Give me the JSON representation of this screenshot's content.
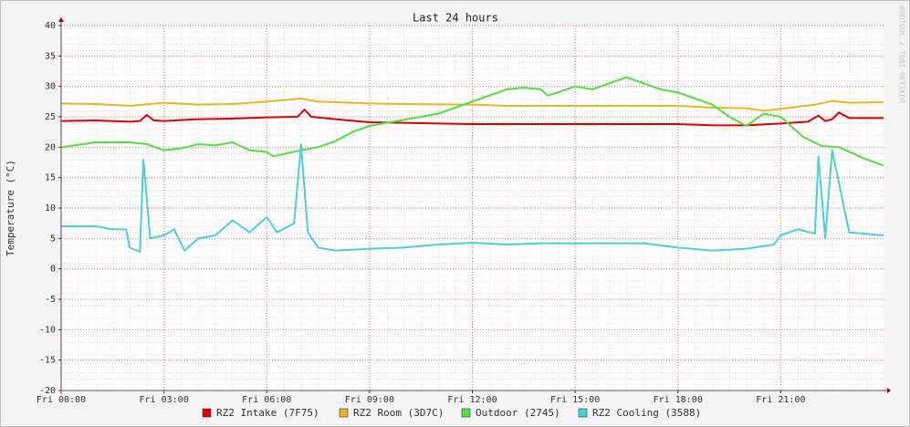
{
  "chart_data": {
    "type": "line",
    "title": "Last 24 hours",
    "y_label": "Temperature (°C)",
    "watermark": "RRDTOOL / TOBI OETIKER",
    "xlim": [
      0,
      24
    ],
    "ylim": [
      -20,
      40
    ],
    "xticks": [
      {
        "value": 0,
        "label": "Fri 00:00"
      },
      {
        "value": 3,
        "label": "Fri 03:00"
      },
      {
        "value": 6,
        "label": "Fri 06:00"
      },
      {
        "value": 9,
        "label": "Fri 09:00"
      },
      {
        "value": 12,
        "label": "Fri 12:00"
      },
      {
        "value": 15,
        "label": "Fri 15:00"
      },
      {
        "value": 18,
        "label": "Fri 18:00"
      },
      {
        "value": 21,
        "label": "Fri 21:00"
      }
    ],
    "yticks": [
      -20,
      -15,
      -10,
      -5,
      0,
      5,
      10,
      15,
      20,
      25,
      30,
      35,
      40
    ],
    "grid": true,
    "series": [
      {
        "name": "RZ2 Intake (7F75)",
        "color": "#e00000",
        "x": [
          0,
          1,
          2,
          2.3,
          2.5,
          2.7,
          3,
          4,
          5,
          6,
          6.9,
          7.1,
          7.3,
          8,
          9,
          10,
          12,
          15,
          18,
          19,
          20,
          21,
          21.8,
          22.1,
          22.3,
          22.5,
          22.7,
          23,
          24
        ],
        "values": [
          24.3,
          24.4,
          24.2,
          24.3,
          25.3,
          24.4,
          24.3,
          24.6,
          24.7,
          24.9,
          25,
          26.2,
          25,
          24.6,
          24.1,
          24,
          23.8,
          23.8,
          23.8,
          23.6,
          23.6,
          23.9,
          24.2,
          25.2,
          24.3,
          24.6,
          25.7,
          24.8,
          24.8
        ]
      },
      {
        "name": "RZ2 Room (3D7C)",
        "color": "#e8b820",
        "x": [
          0,
          1,
          2,
          3,
          4,
          5,
          6,
          7,
          7.5,
          8,
          9,
          10,
          12,
          13,
          15,
          18,
          19,
          20,
          20.5,
          21,
          22,
          22.5,
          23,
          24
        ],
        "values": [
          27.2,
          27.1,
          26.8,
          27.3,
          27,
          27.1,
          27.5,
          28,
          27.5,
          27.4,
          27.2,
          27.1,
          27,
          26.8,
          26.8,
          26.8,
          26.5,
          26.4,
          26,
          26.3,
          27,
          27.6,
          27.3,
          27.4
        ]
      },
      {
        "name": "Outdoor (2745)",
        "color": "#50e040",
        "x": [
          0,
          1,
          2,
          2.5,
          3,
          3.5,
          4,
          4.5,
          5,
          5.5,
          6,
          6.2,
          7,
          7.5,
          8,
          8.5,
          9,
          9.5,
          10,
          10.5,
          11,
          11.5,
          12,
          12.5,
          13,
          13.5,
          14,
          14.2,
          14.5,
          15,
          15.5,
          16,
          16.5,
          17,
          17.5,
          18,
          18.5,
          19,
          19.5,
          20,
          20.5,
          21,
          21.65,
          22.2,
          22.7,
          23.5,
          24
        ],
        "values": [
          20,
          20.8,
          20.8,
          20.5,
          19.5,
          19.8,
          20.5,
          20.3,
          20.8,
          19.5,
          19.2,
          18.5,
          19.5,
          20,
          21,
          22.5,
          23.5,
          24,
          24.5,
          25,
          25.5,
          26.5,
          27.5,
          28.5,
          29.5,
          29.8,
          29.5,
          28.5,
          29,
          30,
          29.5,
          30.5,
          31.5,
          30.5,
          29.5,
          29,
          28,
          27,
          25,
          23.5,
          25.5,
          25,
          21.7,
          20.2,
          20,
          18,
          17
        ]
      },
      {
        "name": "RZ2 Cooling (3588)",
        "color": "#48d0e0",
        "x": [
          0,
          1,
          1.5,
          1.9,
          2,
          2.3,
          2.4,
          2.6,
          3,
          3.3,
          3.6,
          4,
          4.5,
          5,
          5.5,
          6,
          6.3,
          6.8,
          7,
          7.2,
          7.5,
          8,
          9,
          10,
          11,
          12,
          13,
          14,
          17,
          18,
          19,
          20,
          20.8,
          21,
          21.5,
          22,
          22.1,
          22.3,
          22.5,
          23,
          24
        ],
        "values": [
          7,
          7,
          6.5,
          6.5,
          3.5,
          2.8,
          18,
          5,
          5.5,
          6.5,
          3,
          5,
          5.5,
          8,
          6,
          8.5,
          6,
          7.5,
          20.5,
          6,
          3.5,
          3,
          3.3,
          3.5,
          4,
          4.3,
          4,
          4.2,
          4.2,
          3.5,
          3,
          3.3,
          4,
          5.5,
          6.5,
          5.8,
          18.5,
          5,
          19.5,
          6,
          5.5
        ]
      }
    ]
  }
}
